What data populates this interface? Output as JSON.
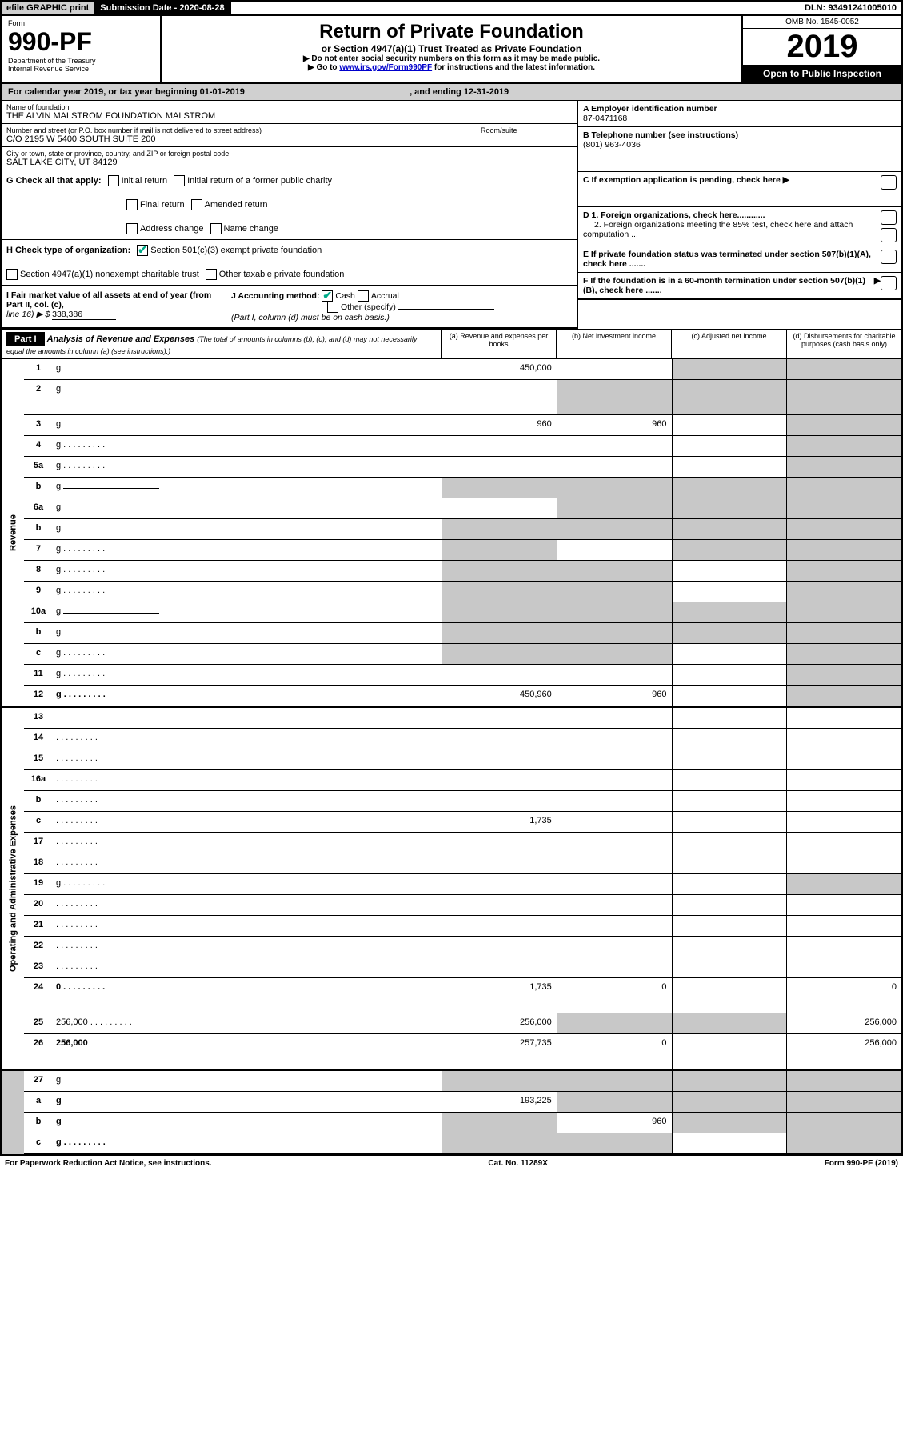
{
  "topbar": {
    "efile": "efile GRAPHIC print",
    "subdate": "Submission Date - 2020-08-28",
    "dln": "DLN: 93491241005010"
  },
  "header": {
    "form_label": "Form",
    "form_num": "990-PF",
    "dept1": "Department of the Treasury",
    "dept2": "Internal Revenue Service",
    "title": "Return of Private Foundation",
    "subtitle": "or Section 4947(a)(1) Trust Treated as Private Foundation",
    "note1": "▶ Do not enter social security numbers on this form as it may be made public.",
    "note2a": "▶ Go to ",
    "note2link": "www.irs.gov/Form990PF",
    "note2b": " for instructions and the latest information.",
    "omb": "OMB No. 1545-0052",
    "year": "2019",
    "open": "Open to Public Inspection"
  },
  "calyear": {
    "text_a": "For calendar year 2019, or tax year beginning ",
    "begin": "01-01-2019",
    "text_b": ", and ending ",
    "end": "12-31-2019"
  },
  "info": {
    "name_lbl": "Name of foundation",
    "name_val": "THE ALVIN MALSTROM FOUNDATION MALSTROM",
    "addr_lbl": "Number and street (or P.O. box number if mail is not delivered to street address)",
    "addr_val": "C/O 2195 W 5400 SOUTH SUITE 200",
    "room_lbl": "Room/suite",
    "city_lbl": "City or town, state or province, country, and ZIP or foreign postal code",
    "city_val": "SALT LAKE CITY, UT  84129",
    "ein_lbl": "A Employer identification number",
    "ein_val": "87-0471168",
    "tel_lbl": "B Telephone number (see instructions)",
    "tel_val": "(801) 963-4036",
    "c_lbl": "C If exemption application is pending, check here ▶",
    "d1": "D 1. Foreign organizations, check here............",
    "d2": "2. Foreign organizations meeting the 85% test, check here and attach computation ...",
    "e_lbl": "E  If private foundation status was terminated under section 507(b)(1)(A), check here .......",
    "f_lbl": "F  If the foundation is in a 60-month termination under section 507(b)(1)(B), check here ......."
  },
  "checks": {
    "g_lbl": "G Check all that apply:",
    "initial": "Initial return",
    "initial_former": "Initial return of a former public charity",
    "final": "Final return",
    "amended": "Amended return",
    "addr_change": "Address change",
    "name_change": "Name change",
    "h_lbl": "H Check type of organization:",
    "h_501": "Section 501(c)(3) exempt private foundation",
    "h_4947": "Section 4947(a)(1) nonexempt charitable trust",
    "h_other": "Other taxable private foundation",
    "i_lbl": "I Fair market value of all assets at end of year (from Part II, col. (c),",
    "i_line": "line 16) ▶ $",
    "i_val": "338,386",
    "j_lbl": "J Accounting method:",
    "j_cash": "Cash",
    "j_accrual": "Accrual",
    "j_other": "Other (specify)",
    "j_note": "(Part I, column (d) must be on cash basis.)"
  },
  "part1": {
    "label": "Part I",
    "title": "Analysis of Revenue and Expenses",
    "sub": "(The total of amounts in columns (b), (c), and (d) may not necessarily equal the amounts in column (a) (see instructions).)",
    "col_a": "(a)   Revenue and expenses per books",
    "col_b": "(b)  Net investment income",
    "col_c": "(c)  Adjusted net income",
    "col_d": "(d)  Disbursements for charitable purposes (cash basis only)"
  },
  "sections": {
    "revenue": "Revenue",
    "expenses": "Operating and Administrative Expenses"
  },
  "rows": [
    {
      "n": "1",
      "d": "g",
      "a": "450,000",
      "b": "",
      "c": "g"
    },
    {
      "n": "2",
      "d": "g",
      "a": "",
      "b": "g",
      "c": "g",
      "bold": false,
      "tall": true
    },
    {
      "n": "3",
      "d": "g",
      "a": "960",
      "b": "960",
      "c": ""
    },
    {
      "n": "4",
      "d": "g",
      "a": "",
      "b": "",
      "c": "",
      "dots": true
    },
    {
      "n": "5a",
      "d": "g",
      "a": "",
      "b": "",
      "c": "",
      "dots": true
    },
    {
      "n": "b",
      "d": "g",
      "a": "g",
      "b": "g",
      "c": "g",
      "inline": true
    },
    {
      "n": "6a",
      "d": "g",
      "a": "",
      "b": "g",
      "c": "g"
    },
    {
      "n": "b",
      "d": "g",
      "a": "g",
      "b": "g",
      "c": "g",
      "inline": true
    },
    {
      "n": "7",
      "d": "g",
      "a": "g",
      "b": "",
      "c": "g",
      "dots": true
    },
    {
      "n": "8",
      "d": "g",
      "a": "g",
      "b": "g",
      "c": "",
      "dots": true
    },
    {
      "n": "9",
      "d": "g",
      "a": "g",
      "b": "g",
      "c": "",
      "dots": true
    },
    {
      "n": "10a",
      "d": "g",
      "a": "g",
      "b": "g",
      "c": "g",
      "inline": true
    },
    {
      "n": "b",
      "d": "g",
      "a": "g",
      "b": "g",
      "c": "g",
      "inline": true,
      "dots": true
    },
    {
      "n": "c",
      "d": "g",
      "a": "g",
      "b": "g",
      "c": "",
      "dots": true
    },
    {
      "n": "11",
      "d": "g",
      "a": "",
      "b": "",
      "c": "",
      "dots": true
    },
    {
      "n": "12",
      "d": "g",
      "a": "450,960",
      "b": "960",
      "c": "",
      "bold": true,
      "dots": true
    }
  ],
  "exp_rows": [
    {
      "n": "13",
      "d": "",
      "a": "",
      "b": "",
      "c": ""
    },
    {
      "n": "14",
      "d": "",
      "a": "",
      "b": "",
      "c": "",
      "dots": true
    },
    {
      "n": "15",
      "d": "",
      "a": "",
      "b": "",
      "c": "",
      "dots": true
    },
    {
      "n": "16a",
      "d": "",
      "a": "",
      "b": "",
      "c": "",
      "dots": true
    },
    {
      "n": "b",
      "d": "",
      "a": "",
      "b": "",
      "c": "",
      "dots": true
    },
    {
      "n": "c",
      "d": "",
      "a": "1,735",
      "b": "",
      "c": "",
      "dots": true
    },
    {
      "n": "17",
      "d": "",
      "a": "",
      "b": "",
      "c": "",
      "dots": true
    },
    {
      "n": "18",
      "d": "",
      "a": "",
      "b": "",
      "c": "",
      "dots": true
    },
    {
      "n": "19",
      "d": "g",
      "a": "",
      "b": "",
      "c": "",
      "dots": true
    },
    {
      "n": "20",
      "d": "",
      "a": "",
      "b": "",
      "c": "",
      "dots": true
    },
    {
      "n": "21",
      "d": "",
      "a": "",
      "b": "",
      "c": "",
      "dots": true
    },
    {
      "n": "22",
      "d": "",
      "a": "",
      "b": "",
      "c": "",
      "dots": true
    },
    {
      "n": "23",
      "d": "",
      "a": "",
      "b": "",
      "c": "",
      "dots": true
    },
    {
      "n": "24",
      "d": "0",
      "a": "1,735",
      "b": "0",
      "c": "",
      "bold": true,
      "dots": true,
      "tall": true
    },
    {
      "n": "25",
      "d": "256,000",
      "a": "256,000",
      "b": "g",
      "c": "g",
      "dots": true
    },
    {
      "n": "26",
      "d": "256,000",
      "a": "257,735",
      "b": "0",
      "c": "",
      "bold": true,
      "tall": true
    }
  ],
  "bottom_rows": [
    {
      "n": "27",
      "d": "g",
      "a": "g",
      "b": "g",
      "c": "g"
    },
    {
      "n": "a",
      "d": "g",
      "a": "193,225",
      "b": "g",
      "c": "g",
      "bold": true
    },
    {
      "n": "b",
      "d": "g",
      "a": "g",
      "b": "960",
      "c": "g",
      "bold": true
    },
    {
      "n": "c",
      "d": "g",
      "a": "g",
      "b": "g",
      "c": "",
      "bold": true,
      "dots": true
    }
  ],
  "footer": {
    "left": "For Paperwork Reduction Act Notice, see instructions.",
    "mid": "Cat. No. 11289X",
    "right": "Form 990-PF (2019)"
  }
}
